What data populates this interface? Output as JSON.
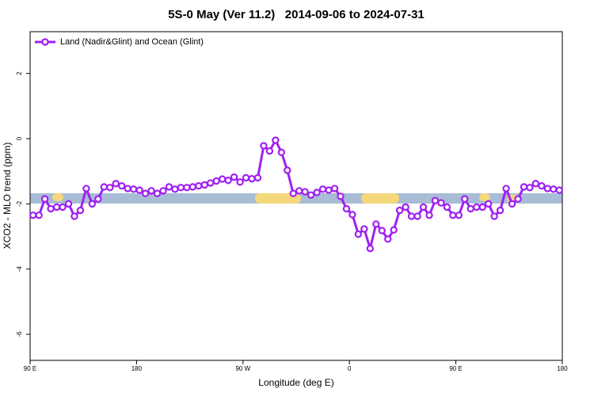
{
  "chart_data": {
    "type": "line",
    "title": "5S-0 May (Ver 11.2)   2014-09-06 to 2024-07-31",
    "x_label": "Longitude (deg E)",
    "y_label": "XCO2 - MLO trend (ppm)",
    "x": [
      92.5,
      97.5,
      102.5,
      107.5,
      112.5,
      117.5,
      122.5,
      127.5,
      132.5,
      137.5,
      142.5,
      147.5,
      152.5,
      157.5,
      162.5,
      167.5,
      172.5,
      177.5,
      182.5,
      187.5,
      192.5,
      197.5,
      202.5,
      207.5,
      212.5,
      217.5,
      222.5,
      227.5,
      232.5,
      237.5,
      242.5,
      247.5,
      252.5,
      257.5,
      262.5,
      267.5,
      272.5,
      277.5,
      282.5,
      287.5,
      292.5,
      297.5,
      302.5,
      307.5,
      312.5,
      317.5,
      322.5,
      327.5,
      332.5,
      337.5,
      342.5,
      347.5,
      352.5,
      357.5,
      362.5,
      367.5,
      372.5,
      377.5,
      382.5,
      387.5,
      392.5,
      397.5,
      402.5,
      407.5,
      412.5,
      417.5,
      422.5,
      427.5,
      432.5,
      437.5,
      442.5,
      447.5,
      452.5,
      457.5,
      462.5,
      467.5,
      472.5,
      477.5,
      482.5,
      487.5,
      492.5,
      497.5,
      502.5,
      507.5,
      512.5,
      517.5,
      522.5,
      527.5,
      532.5,
      537.5
    ],
    "series": [
      {
        "name": "Land (Nadir&Glint) and Ocean (Glint)",
        "color": "#a020f0",
        "values": [
          -2.35,
          -2.35,
          -1.85,
          -2.15,
          -2.1,
          -2.1,
          -2.0,
          -2.38,
          -2.2,
          -1.53,
          -2.0,
          -1.85,
          -1.48,
          -1.5,
          -1.38,
          -1.45,
          -1.53,
          -1.55,
          -1.58,
          -1.68,
          -1.6,
          -1.68,
          -1.6,
          -1.48,
          -1.55,
          -1.5,
          -1.5,
          -1.48,
          -1.45,
          -1.42,
          -1.36,
          -1.3,
          -1.24,
          -1.28,
          -1.18,
          -1.33,
          -1.2,
          -1.23,
          -1.2,
          -0.22,
          -0.38,
          -0.05,
          -0.42,
          -0.97,
          -1.68,
          -1.6,
          -1.63,
          -1.73,
          -1.65,
          -1.55,
          -1.58,
          -1.53,
          -1.77,
          -2.15,
          -2.33,
          -2.93,
          -2.77,
          -3.37,
          -2.62,
          -2.82,
          -3.08,
          -2.8,
          -2.2,
          -2.1,
          -2.38,
          -2.38,
          -2.1,
          -2.35,
          -1.9,
          -1.97,
          -2.1,
          -2.35,
          -2.35,
          -1.85,
          -2.15,
          -2.1,
          -2.1,
          -2.0,
          -2.38,
          -2.2,
          -1.53,
          -2.0,
          -1.85,
          -1.48,
          -1.5,
          -1.38,
          -1.45,
          -1.53,
          -1.55,
          -1.58
        ]
      }
    ],
    "xlim": [
      90,
      540
    ],
    "xticks": [
      {
        "value": 90,
        "label": "90 E"
      },
      180,
      {
        "value": 270,
        "label": "90 W"
      },
      {
        "value": 360,
        "label": "0"
      },
      {
        "value": 450,
        "label": "90 E"
      },
      {
        "value": 540,
        "label": "180"
      }
    ],
    "ylim": [
      -6.8,
      3.28
    ],
    "yticks": [
      -6,
      -4,
      -2,
      0,
      2
    ],
    "legend": "top-left"
  }
}
